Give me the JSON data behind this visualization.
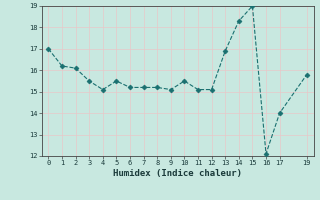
{
  "x": [
    0,
    1,
    2,
    3,
    4,
    5,
    6,
    7,
    8,
    9,
    10,
    11,
    12,
    13,
    14,
    15,
    16,
    17,
    19
  ],
  "y": [
    17.0,
    16.2,
    16.1,
    15.5,
    15.1,
    15.5,
    15.2,
    15.2,
    15.2,
    15.1,
    15.5,
    15.1,
    15.1,
    16.9,
    18.3,
    19.0,
    12.1,
    14.0,
    15.8
  ],
  "xlabel": "Humidex (Indice chaleur)",
  "ylim": [
    12,
    19
  ],
  "xlim": [
    -0.5,
    19.5
  ],
  "yticks": [
    12,
    13,
    14,
    15,
    16,
    17,
    18,
    19
  ],
  "xticks": [
    0,
    1,
    2,
    3,
    4,
    5,
    6,
    7,
    8,
    9,
    10,
    11,
    12,
    13,
    14,
    15,
    16,
    17,
    19
  ],
  "line_color": "#1a7070",
  "marker": "D",
  "marker_size": 2.5,
  "bg_color": "#c8e8e0",
  "grid_minor_color": "#e8c8c8",
  "grid_major_color": "#e8c8c8"
}
